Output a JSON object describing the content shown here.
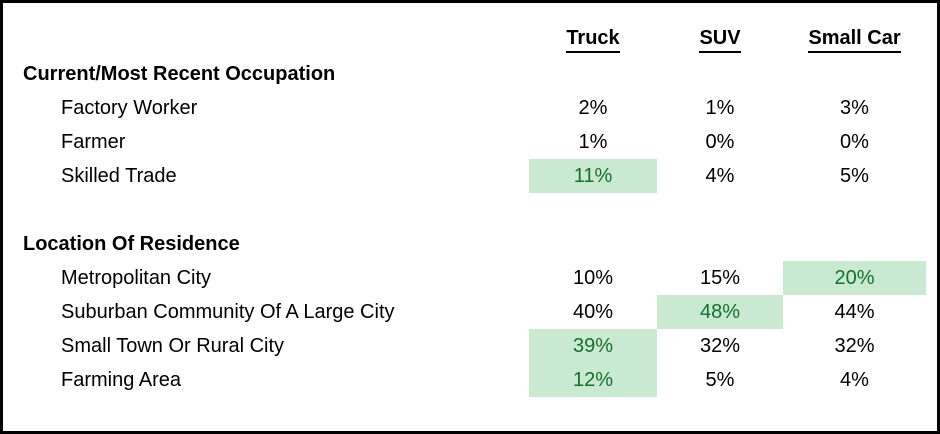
{
  "colors": {
    "highlight_bg": "#c9ead1",
    "highlight_text": "#156f2b",
    "border": "#000000",
    "text": "#000000"
  },
  "chart_data": {
    "type": "table",
    "columns": [
      "Truck",
      "SUV",
      "Small Car"
    ],
    "sections": [
      {
        "title": "Current/Most Recent Occupation",
        "rows": [
          {
            "label": "Factory Worker",
            "values": [
              "2%",
              "1%",
              "3%"
            ],
            "highlight": [
              false,
              false,
              false
            ]
          },
          {
            "label": "Farmer",
            "values": [
              "1%",
              "0%",
              "0%"
            ],
            "highlight": [
              false,
              false,
              false
            ]
          },
          {
            "label": "Skilled Trade",
            "values": [
              "11%",
              "4%",
              "5%"
            ],
            "highlight": [
              true,
              false,
              false
            ]
          }
        ]
      },
      {
        "title": "Location Of Residence",
        "rows": [
          {
            "label": "Metropolitan City",
            "values": [
              "10%",
              "15%",
              "20%"
            ],
            "highlight": [
              false,
              false,
              true
            ]
          },
          {
            "label": "Suburban Community Of A Large City",
            "values": [
              "40%",
              "48%",
              "44%"
            ],
            "highlight": [
              false,
              true,
              false
            ]
          },
          {
            "label": "Small Town Or Rural City",
            "values": [
              "39%",
              "32%",
              "32%"
            ],
            "highlight": [
              true,
              false,
              false
            ]
          },
          {
            "label": "Farming Area",
            "values": [
              "12%",
              "5%",
              "4%"
            ],
            "highlight": [
              true,
              false,
              false
            ]
          }
        ]
      }
    ]
  }
}
